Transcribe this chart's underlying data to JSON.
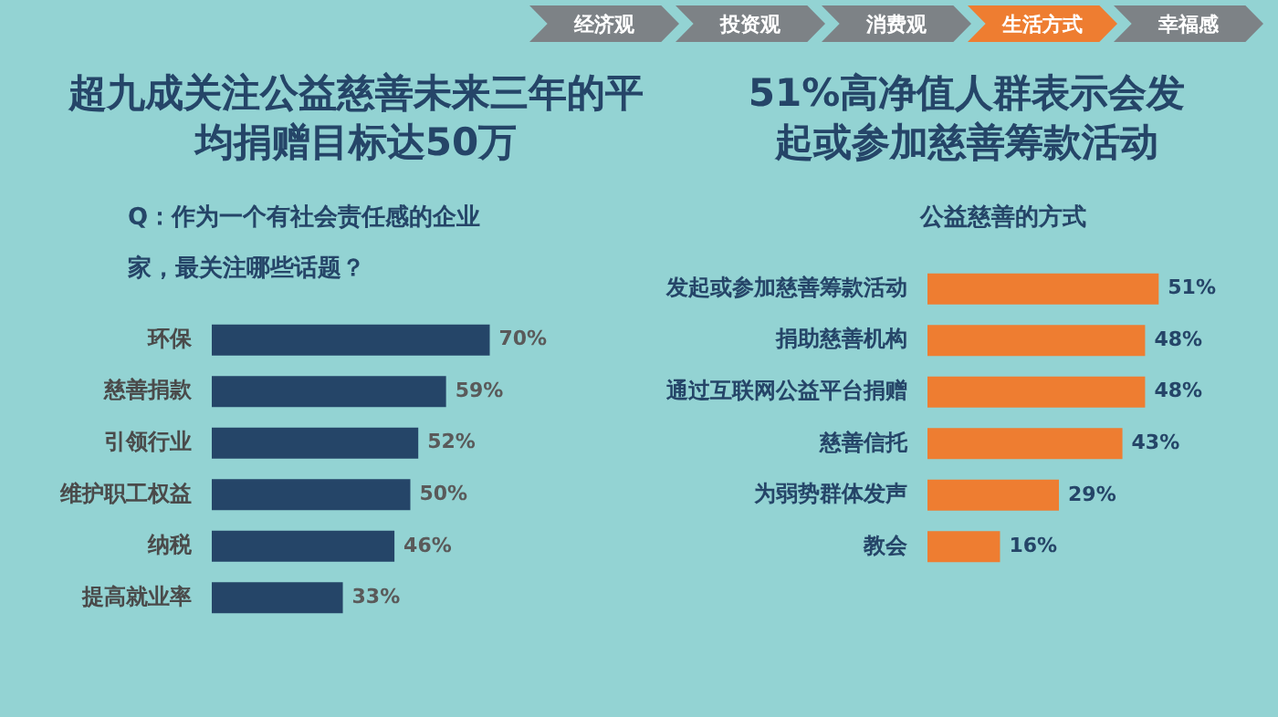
{
  "chart_data": [
    {
      "type": "other",
      "annotations": [
        "经济观",
        "投资观",
        "消费观",
        "生活方式",
        "幸福感"
      ],
      "colors": [
        "#7d8286",
        "#7d8286",
        "#7d8286",
        "#ee7d31",
        "#7d8286"
      ]
    },
    {
      "type": "bar",
      "orientation": "horizontal",
      "title": "超九成关注公益慈善未来三年的平均捐赠目标达50万",
      "subtitle": "Q：作为一个有社会责任感的企业家，最关注哪些话题？",
      "categories": [
        "环保",
        "慈善捐款",
        "引领行业",
        "维护职工权益",
        "纳税",
        "提高就业率"
      ],
      "values": [
        70,
        59,
        52,
        50,
        46,
        33
      ],
      "value_labels": [
        "70%",
        "59%",
        "52%",
        "50%",
        "46%",
        "33%"
      ],
      "color": "#254568",
      "grid": false,
      "legend": false,
      "tick_labels": "y"
    },
    {
      "type": "bar",
      "orientation": "horizontal",
      "title": "51%高净值人群表示会发起或参加慈善筹款活动",
      "subtitle": "公益慈善的方式",
      "categories": [
        "发起或参加慈善筹款活动",
        "捐助慈善机构",
        "通过互联网公益平台捐赠",
        "慈善信托",
        "为弱势群体发声",
        "教会"
      ],
      "values": [
        51,
        48,
        48,
        43,
        29,
        16
      ],
      "value_labels": [
        "51%",
        "48%",
        "48%",
        "43%",
        "29%",
        "16%"
      ],
      "color": "#ee7d31",
      "grid": false,
      "legend": false,
      "tick_labels": "y"
    }
  ]
}
